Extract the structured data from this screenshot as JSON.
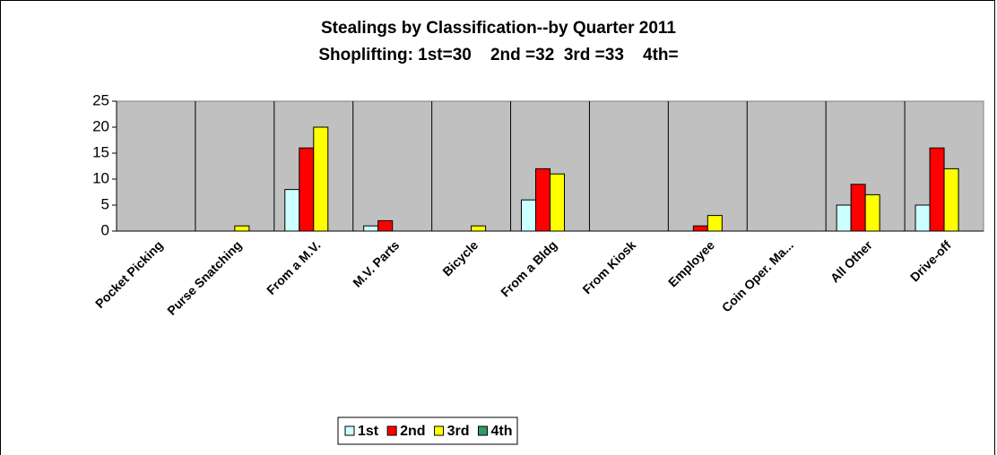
{
  "chart_data": {
    "type": "bar",
    "title": "Stealings by Classification--by Quarter 2011",
    "subtitle": "Shoplifting: 1st=30    2nd =32  3rd =33    4th=",
    "categories": [
      "Pocket Picking",
      "Purse Snatching",
      "From a M.V.",
      "M.V. Parts",
      "Bicycle",
      "From a Bldg",
      "From Kiosk",
      "Employee",
      "Coin Oper. Ma...",
      "All Other",
      "Drive-off"
    ],
    "series": [
      {
        "name": "1st",
        "color": "#ccffff",
        "values": [
          0,
          0,
          8,
          1,
          0,
          6,
          0,
          0,
          0,
          5,
          5
        ]
      },
      {
        "name": "2nd",
        "color": "#ff0000",
        "values": [
          0,
          0,
          16,
          2,
          0,
          12,
          0,
          1,
          0,
          9,
          16
        ]
      },
      {
        "name": "3rd",
        "color": "#ffff00",
        "values": [
          0,
          1,
          20,
          0,
          1,
          11,
          0,
          3,
          0,
          7,
          12
        ]
      },
      {
        "name": "4th",
        "color": "#339966",
        "values": [
          null,
          null,
          null,
          null,
          null,
          null,
          null,
          null,
          null,
          null,
          null
        ]
      }
    ],
    "ylim": [
      0,
      25
    ],
    "yticks": [
      0,
      5,
      10,
      15,
      20,
      25
    ],
    "legend": "bottom"
  }
}
